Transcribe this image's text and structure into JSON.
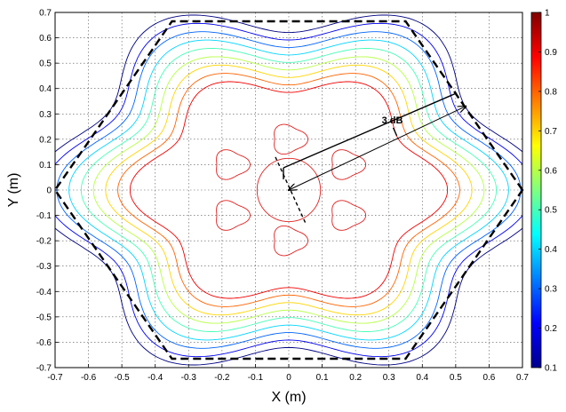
{
  "chart_data": {
    "type": "contour",
    "title": "",
    "xlabel": "X (m)",
    "ylabel": "Y (m)",
    "xlim": [
      -0.7,
      0.7
    ],
    "ylim": [
      -0.7,
      0.7
    ],
    "xticks": [
      -0.7,
      -0.6,
      -0.5,
      -0.4,
      -0.3,
      -0.2,
      -0.1,
      0,
      0.1,
      0.2,
      0.3,
      0.4,
      0.5,
      0.6,
      0.7
    ],
    "xtick_labels": [
      "-0.7",
      "-0.6",
      "-0.5",
      "-0.4",
      "-0.3",
      "-0.2",
      "-0.1",
      "0",
      "0.1",
      "0.2",
      "0.3",
      "0.4",
      "0.5",
      "0.6",
      "0.7"
    ],
    "yticks": [
      -0.7,
      -0.6,
      -0.5,
      -0.4,
      -0.3,
      -0.2,
      -0.1,
      0,
      0.1,
      0.2,
      0.3,
      0.4,
      0.5,
      0.6,
      0.7
    ],
    "ytick_labels": [
      "-0.7",
      "-0.6",
      "-0.5",
      "-0.4",
      "-0.3",
      "-0.2",
      "-0.1",
      "0",
      "0.1",
      "0.2",
      "0.3",
      "0.4",
      "0.5",
      "0.6",
      "0.7"
    ],
    "grid": true,
    "colorbar": {
      "range": [
        0.1,
        1
      ],
      "ticks": [
        0.1,
        0.2,
        0.3,
        0.4,
        0.5,
        0.6,
        0.7,
        0.8,
        0.9,
        1
      ],
      "tick_labels": [
        "0.1",
        "0.2",
        "0.3",
        "0.4",
        "0.5",
        "0.6",
        "0.7",
        "0.8",
        "0.9",
        "1"
      ],
      "colormap": "jet"
    },
    "contour_levels": [
      0.1,
      0.2,
      0.3,
      0.4,
      0.5,
      0.6,
      0.7,
      0.8,
      0.9
    ],
    "contour_radii": [
      0.735,
      0.7,
      0.665,
      0.63,
      0.595,
      0.56,
      0.525,
      0.49,
      0.455
    ],
    "hexagon": {
      "vertices": [
        [
          0.7,
          0
        ],
        [
          0.35,
          0.665
        ],
        [
          -0.35,
          0.665
        ],
        [
          -0.7,
          0
        ],
        [
          -0.35,
          -0.665
        ],
        [
          0.35,
          -0.665
        ]
      ],
      "style": "dashed"
    },
    "inner_contours": {
      "central_circle_radius": 0.095,
      "blob_angles_deg": [
        30,
        90,
        150,
        210,
        270,
        330
      ],
      "blob_distance": 0.2,
      "blob_radius": 0.05
    },
    "annotations": [
      {
        "text": "3 dB",
        "arrow_from": [
          0.0,
          0.0
        ],
        "arrow_to": [
          0.53,
          0.33
        ]
      }
    ],
    "dash_line": {
      "from": [
        -0.04,
        0.13
      ],
      "to": [
        0.05,
        -0.13
      ]
    }
  }
}
